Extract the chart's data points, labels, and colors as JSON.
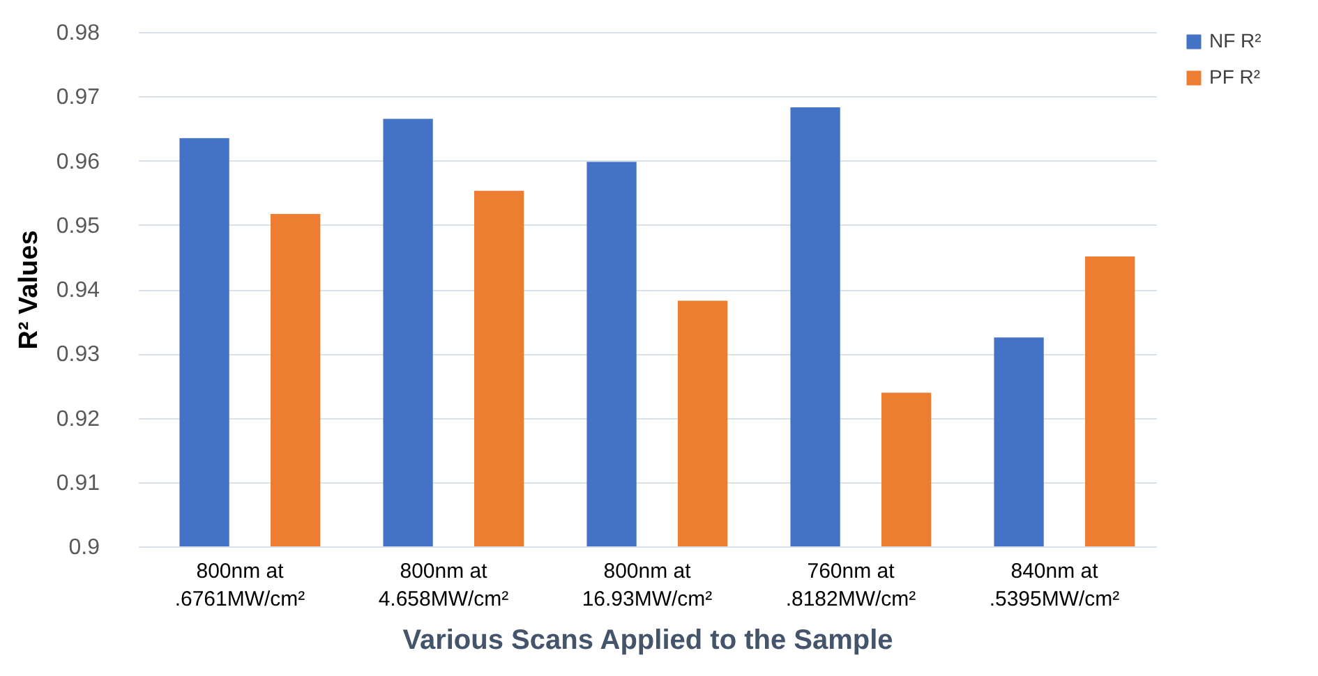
{
  "chart_data": {
    "type": "bar",
    "xlabel": "Various Scans Applied to the Sample",
    "ylabel": "R² Values",
    "categories": [
      "800nm at\n.6761MW/cm²",
      "800nm at\n4.658MW/cm²",
      "800nm at\n16.93MW/cm²",
      "760nm at\n.8182MW/cm²",
      "840nm at\n.5395MW/cm²"
    ],
    "series": [
      {
        "name": "NF R²",
        "color": "#4472c4",
        "values": [
          0.9635,
          0.9665,
          0.9598,
          0.9683,
          0.9325
        ]
      },
      {
        "name": "PF R²",
        "color": "#ed7d31",
        "values": [
          0.9517,
          0.9553,
          0.9382,
          0.9239,
          0.9451
        ]
      }
    ],
    "ylim": [
      0.9,
      0.98
    ],
    "yticks": [
      0.9,
      0.91,
      0.92,
      0.93,
      0.94,
      0.95,
      0.96,
      0.97,
      0.98
    ],
    "grid": "y",
    "legend": "right"
  }
}
